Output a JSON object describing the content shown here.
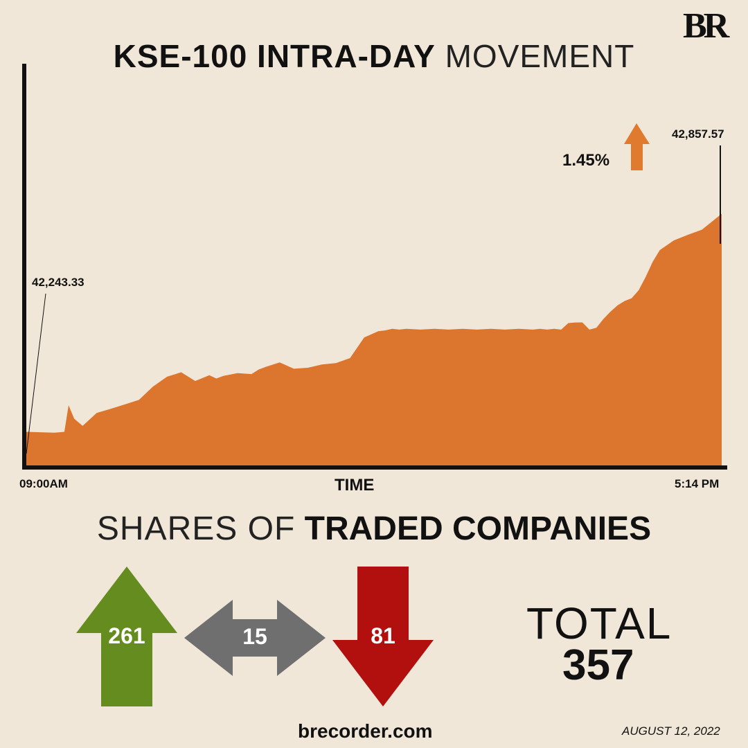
{
  "brand": {
    "logo": "BR",
    "website": "brecorder.com",
    "date": "AUGUST 12, 2022"
  },
  "header": {
    "title_bold": "KSE-100 INTRA-DAY",
    "title_light": "MOVEMENT"
  },
  "chart_data": {
    "type": "area",
    "title": "KSE-100 INTRA-DAY MOVEMENT",
    "xlabel": "TIME",
    "x_start_label": "09:00AM",
    "x_end_label": "5:14 PM",
    "open_label": "42,243.33",
    "close_label": "42,857.57",
    "change_label": "1.45%",
    "open": 42243.33,
    "close": 42857.57,
    "series_color": "#dc762f",
    "x": [
      "09:00",
      "09:20",
      "09:27",
      "09:30",
      "09:34",
      "09:40",
      "09:50",
      "10:00",
      "10:10",
      "10:20",
      "10:30",
      "10:40",
      "10:50",
      "11:00",
      "11:10",
      "11:15",
      "11:20",
      "11:30",
      "11:40",
      "11:45",
      "11:50",
      "12:00",
      "12:10",
      "12:20",
      "12:30",
      "12:40",
      "12:50",
      "13:00",
      "13:10",
      "13:15",
      "13:20",
      "13:25",
      "13:30",
      "13:40",
      "13:50",
      "14:00",
      "14:10",
      "14:20",
      "14:30",
      "14:40",
      "14:50",
      "15:00",
      "15:05",
      "15:10",
      "15:15",
      "15:20",
      "15:25",
      "15:30",
      "15:35",
      "15:40",
      "15:45",
      "15:50",
      "15:55",
      "16:00",
      "16:05",
      "16:10",
      "16:15",
      "16:20",
      "16:25",
      "16:30",
      "16:40",
      "16:50",
      "17:00",
      "17:14"
    ],
    "values": [
      42243,
      42243,
      42243,
      42320,
      42280,
      42262,
      42296,
      42310,
      42320,
      42335,
      42370,
      42400,
      42410,
      42388,
      42402,
      42395,
      42400,
      42410,
      42405,
      42420,
      42425,
      42440,
      42420,
      42425,
      42432,
      42438,
      42450,
      42510,
      42525,
      42530,
      42532,
      42532,
      42532,
      42532,
      42532,
      42532,
      42532,
      42532,
      42532,
      42532,
      42532,
      42532,
      42532,
      42532,
      42532,
      42532,
      42548,
      42552,
      42550,
      42532,
      42535,
      42562,
      42580,
      42600,
      42610,
      42620,
      42640,
      42680,
      42720,
      42755,
      42780,
      42798,
      42810,
      42857
    ]
  },
  "companies": {
    "heading_light": "SHARES OF",
    "heading_bold": "TRADED COMPANIES",
    "up": {
      "value": "261",
      "color": "#648c1e"
    },
    "unchanged": {
      "value": "15",
      "color": "#6f6f6f"
    },
    "down": {
      "value": "81",
      "color": "#b20f0f"
    },
    "total_label": "TOTAL",
    "total_value": "357",
    "accent_color": "#e07a2e"
  }
}
